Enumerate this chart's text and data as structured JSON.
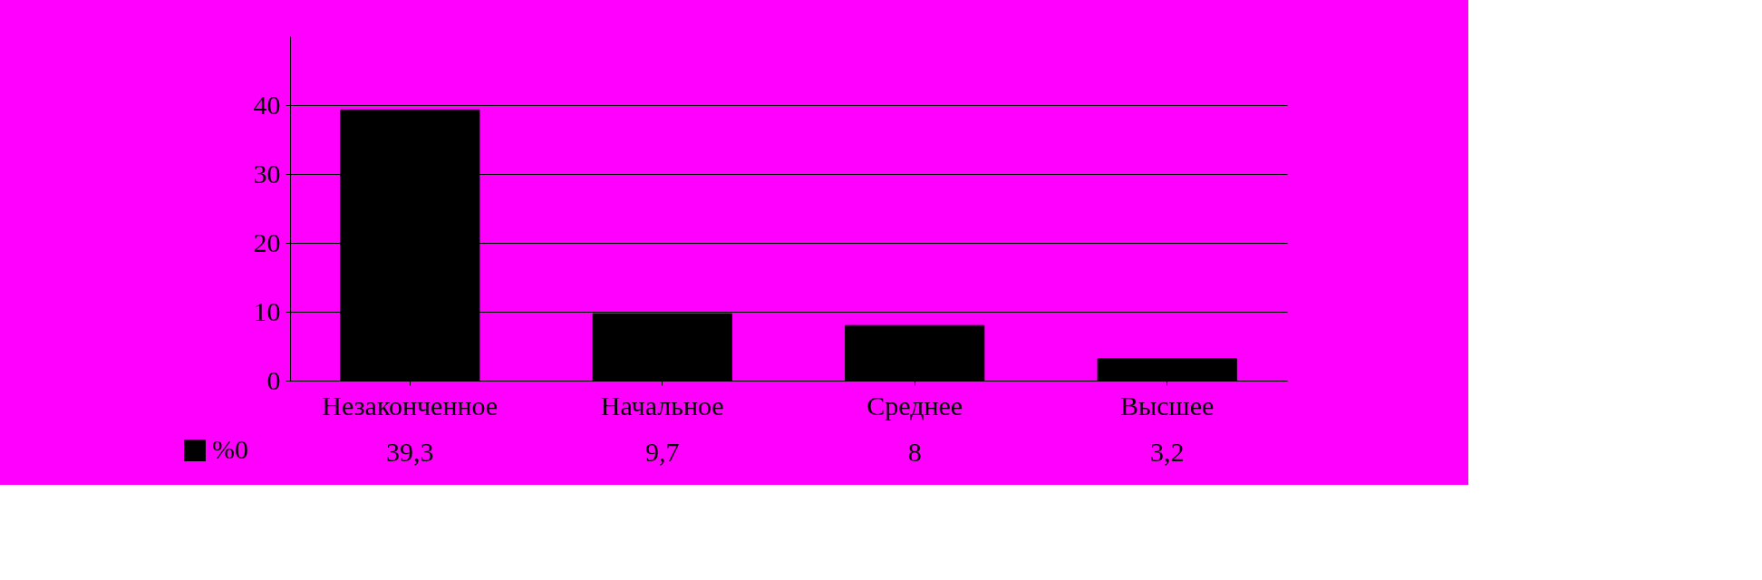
{
  "chart_data": {
    "type": "bar",
    "categories": [
      "Незаконченное",
      "Начальное",
      "Среднее",
      "Высшее"
    ],
    "series": [
      {
        "name": "%0",
        "color": "#000000",
        "values": [
          39.3,
          9.7,
          8,
          3.2
        ],
        "value_labels": [
          "39,3",
          "9,7",
          "8",
          "3,2"
        ]
      }
    ],
    "ylim": [
      0,
      50
    ],
    "yticks": [
      0,
      10,
      20,
      30,
      40
    ],
    "grid": "y",
    "legend": "bottom left"
  }
}
